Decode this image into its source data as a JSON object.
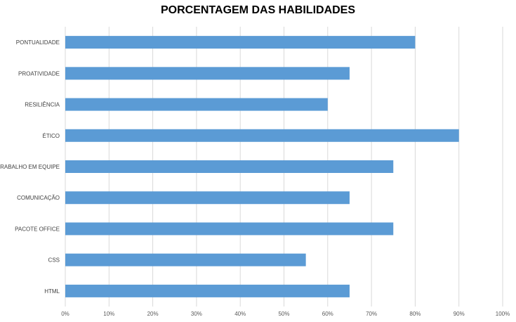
{
  "chart_data": {
    "type": "bar",
    "orientation": "horizontal",
    "title": "PORCENTAGEM DAS HABILIDADES",
    "categories": [
      "PONTUALIDADE",
      "PROATIVIDADE",
      "RESILIÊNCIA",
      "ÉTICO",
      "TRABALHO EM EQUIPE",
      "COMUNICAÇÃO",
      "PACOTE OFFICE",
      "CSS",
      "HTML"
    ],
    "values": [
      0.8,
      0.65,
      0.6,
      0.9,
      0.75,
      0.65,
      0.75,
      0.55,
      0.65
    ],
    "xlim": [
      0,
      1
    ],
    "ticks": [
      0,
      0.1,
      0.2,
      0.3,
      0.4,
      0.5,
      0.6,
      0.7,
      0.8,
      0.9,
      1.0
    ],
    "tick_labels": [
      "0%",
      "10%",
      "20%",
      "30%",
      "40%",
      "50%",
      "60%",
      "70%",
      "80%",
      "90%",
      "100%"
    ],
    "grid": true,
    "bar_color": "#5B9BD5",
    "grid_color": "#D9D9D9"
  }
}
